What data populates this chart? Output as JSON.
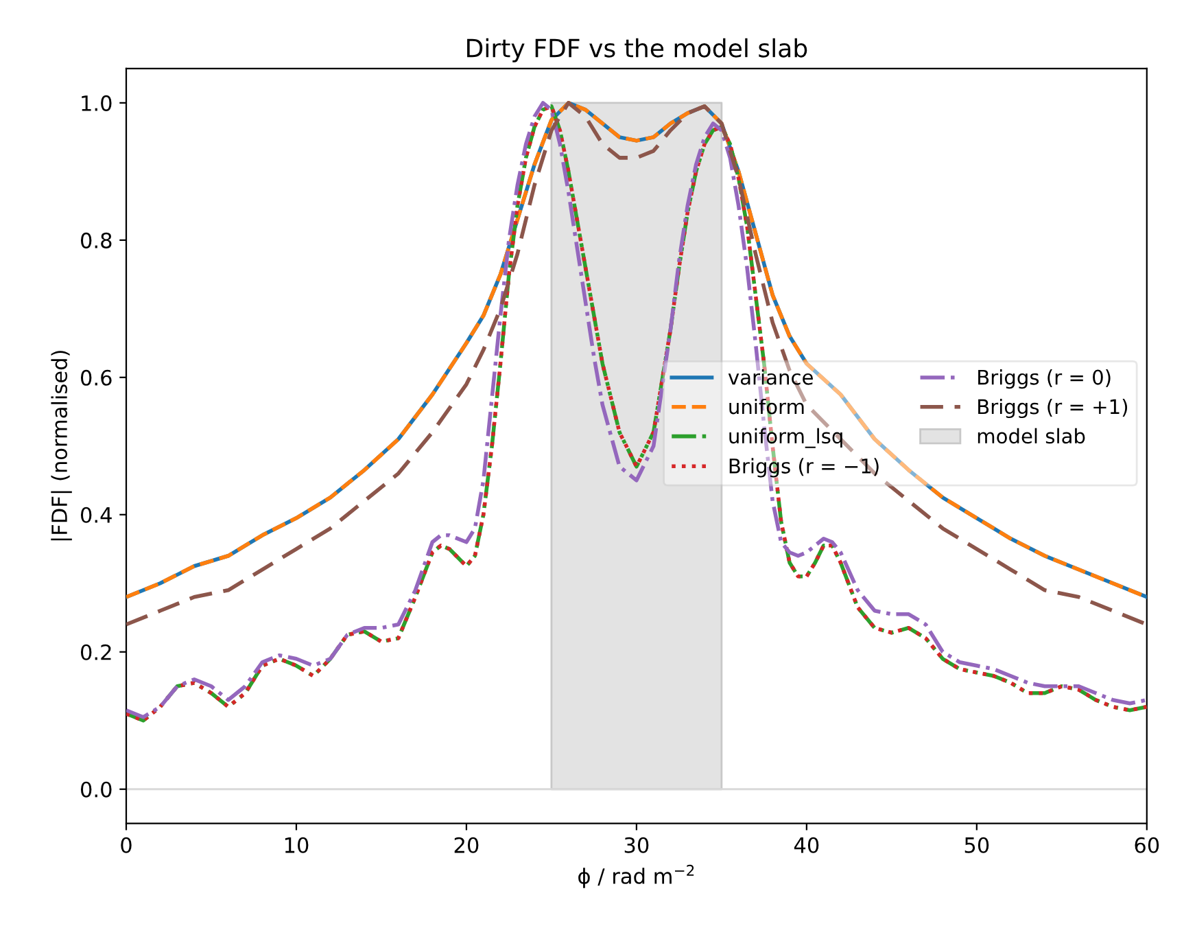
{
  "chart_data": {
    "type": "line",
    "title": "Dirty FDF vs the model slab",
    "xlabel": "ϕ / rad m$^{−2}$",
    "ylabel": "|FDF| (normalised)",
    "xlim": [
      0,
      60
    ],
    "xticks": [
      0,
      10,
      20,
      30,
      40,
      50,
      60
    ],
    "ylim": [
      -0.05,
      1.05
    ],
    "yticks": [
      {
        "value": 0,
        "label": "0.0"
      },
      {
        "value": 0.2,
        "label": "0.2"
      },
      {
        "value": 0.4,
        "label": "0.4"
      },
      {
        "value": 0.6,
        "label": "0.6"
      },
      {
        "value": 0.8,
        "label": "0.8"
      },
      {
        "value": 1.0,
        "label": "1.0"
      }
    ],
    "grid": false,
    "legend": "right",
    "ref_lines": [
      {
        "axis": "y",
        "value": 0,
        "label": null,
        "color": "#d9d9d9",
        "line_style": "solid"
      }
    ],
    "series": [
      {
        "name": "variance",
        "color": "#1f77b4",
        "line_style": "solid",
        "x": [
          0,
          2,
          4,
          6,
          8,
          10,
          12,
          14,
          16,
          18,
          20,
          21,
          22,
          23,
          24,
          25,
          26,
          27,
          28,
          29,
          30,
          31,
          32,
          33,
          34,
          35,
          36,
          37,
          38,
          39,
          40,
          42,
          44,
          46,
          48,
          50,
          52,
          54,
          56,
          58,
          60
        ],
        "values": [
          0.28,
          0.3,
          0.325,
          0.34,
          0.37,
          0.395,
          0.425,
          0.465,
          0.51,
          0.575,
          0.65,
          0.69,
          0.75,
          0.83,
          0.91,
          0.975,
          1.0,
          0.99,
          0.97,
          0.95,
          0.945,
          0.95,
          0.97,
          0.985,
          0.995,
          0.97,
          0.9,
          0.81,
          0.72,
          0.66,
          0.62,
          0.575,
          0.51,
          0.465,
          0.425,
          0.395,
          0.365,
          0.34,
          0.32,
          0.3,
          0.28
        ]
      },
      {
        "name": "uniform",
        "color": "#ff7f0e",
        "line_style": "dashed",
        "x": [
          0,
          2,
          4,
          6,
          8,
          10,
          12,
          14,
          16,
          18,
          20,
          21,
          22,
          23,
          24,
          25,
          26,
          27,
          28,
          29,
          30,
          31,
          32,
          33,
          34,
          35,
          36,
          37,
          38,
          39,
          40,
          42,
          44,
          46,
          48,
          50,
          52,
          54,
          56,
          58,
          60
        ],
        "values": [
          0.28,
          0.3,
          0.325,
          0.34,
          0.37,
          0.395,
          0.425,
          0.465,
          0.51,
          0.575,
          0.65,
          0.69,
          0.75,
          0.83,
          0.91,
          0.975,
          1.0,
          0.99,
          0.97,
          0.95,
          0.945,
          0.95,
          0.97,
          0.985,
          0.995,
          0.97,
          0.9,
          0.81,
          0.72,
          0.66,
          0.62,
          0.575,
          0.51,
          0.465,
          0.425,
          0.395,
          0.365,
          0.34,
          0.32,
          0.3,
          0.28
        ]
      },
      {
        "name": "uniform_lsq",
        "color": "#2ca02c",
        "line_style": "dashdotdot",
        "x": [
          0,
          1,
          2,
          3,
          4,
          5,
          6,
          7,
          8,
          9,
          10,
          11,
          12,
          13,
          14,
          15,
          16,
          17,
          18,
          18.5,
          19,
          20,
          20.5,
          21,
          21.5,
          22,
          22.5,
          23,
          23.5,
          24,
          24.5,
          25,
          25.5,
          26,
          26.5,
          27,
          27.5,
          28,
          29,
          30,
          31,
          32,
          32.5,
          33,
          33.5,
          34,
          34.5,
          35,
          35.5,
          36,
          36.5,
          37,
          37.5,
          38,
          38.5,
          39,
          39.5,
          40,
          40.5,
          41,
          41.5,
          42,
          43,
          44,
          45,
          46,
          47,
          48,
          49,
          50,
          51,
          52,
          53,
          54,
          55,
          56,
          57,
          58,
          59,
          60
        ],
        "values": [
          0.11,
          0.1,
          0.12,
          0.15,
          0.155,
          0.14,
          0.12,
          0.14,
          0.18,
          0.19,
          0.18,
          0.165,
          0.19,
          0.225,
          0.23,
          0.215,
          0.22,
          0.28,
          0.345,
          0.355,
          0.35,
          0.325,
          0.34,
          0.4,
          0.5,
          0.62,
          0.75,
          0.85,
          0.92,
          0.965,
          0.99,
          0.995,
          0.96,
          0.9,
          0.83,
          0.76,
          0.69,
          0.62,
          0.52,
          0.47,
          0.52,
          0.67,
          0.76,
          0.84,
          0.9,
          0.94,
          0.96,
          0.965,
          0.94,
          0.89,
          0.82,
          0.72,
          0.62,
          0.5,
          0.39,
          0.33,
          0.31,
          0.31,
          0.33,
          0.355,
          0.355,
          0.33,
          0.265,
          0.235,
          0.228,
          0.235,
          0.22,
          0.19,
          0.175,
          0.17,
          0.165,
          0.155,
          0.14,
          0.14,
          0.15,
          0.145,
          0.13,
          0.12,
          0.115,
          0.12
        ]
      },
      {
        "name": "Briggs (r = −1)",
        "color": "#d62728",
        "line_style": "dotted",
        "x": [
          0,
          1,
          2,
          3,
          4,
          5,
          6,
          7,
          8,
          9,
          10,
          11,
          12,
          13,
          14,
          15,
          16,
          17,
          18,
          18.5,
          19,
          20,
          20.5,
          21,
          21.5,
          22,
          22.5,
          23,
          23.5,
          24,
          24.5,
          25,
          25.5,
          26,
          26.5,
          27,
          27.5,
          28,
          29,
          30,
          31,
          32,
          32.5,
          33,
          33.5,
          34,
          34.5,
          35,
          35.5,
          36,
          36.5,
          37,
          37.5,
          38,
          38.5,
          39,
          39.5,
          40,
          40.5,
          41,
          41.5,
          42,
          43,
          44,
          45,
          46,
          47,
          48,
          49,
          50,
          51,
          52,
          53,
          54,
          55,
          56,
          57,
          58,
          59,
          60
        ],
        "values": [
          0.11,
          0.1,
          0.12,
          0.15,
          0.155,
          0.14,
          0.12,
          0.14,
          0.18,
          0.19,
          0.18,
          0.165,
          0.19,
          0.225,
          0.23,
          0.215,
          0.22,
          0.28,
          0.345,
          0.355,
          0.35,
          0.325,
          0.34,
          0.4,
          0.5,
          0.62,
          0.75,
          0.85,
          0.92,
          0.965,
          0.99,
          0.995,
          0.96,
          0.9,
          0.83,
          0.76,
          0.69,
          0.62,
          0.52,
          0.47,
          0.52,
          0.67,
          0.76,
          0.84,
          0.9,
          0.94,
          0.96,
          0.965,
          0.94,
          0.89,
          0.82,
          0.72,
          0.62,
          0.5,
          0.39,
          0.33,
          0.31,
          0.31,
          0.33,
          0.355,
          0.355,
          0.33,
          0.265,
          0.235,
          0.228,
          0.235,
          0.22,
          0.19,
          0.175,
          0.17,
          0.165,
          0.155,
          0.14,
          0.14,
          0.15,
          0.145,
          0.13,
          0.12,
          0.115,
          0.12
        ]
      },
      {
        "name": "Briggs (r = 0)",
        "color": "#9467bd",
        "line_style": "dashdot",
        "x": [
          0,
          1,
          2,
          3,
          4,
          5,
          6,
          7,
          8,
          9,
          10,
          11,
          12,
          13,
          14,
          15,
          16,
          17,
          18,
          18.5,
          19,
          20,
          20.5,
          21,
          21.5,
          22,
          22.5,
          23,
          23.5,
          24,
          24.5,
          25,
          25.5,
          26,
          26.5,
          27,
          27.5,
          28,
          29,
          30,
          31,
          32,
          32.5,
          33,
          33.5,
          34,
          34.5,
          35,
          35.5,
          36,
          36.5,
          37,
          37.5,
          38,
          38.5,
          39,
          39.5,
          40,
          40.5,
          41,
          41.5,
          42,
          43,
          44,
          45,
          46,
          47,
          48,
          49,
          50,
          51,
          52,
          53,
          54,
          55,
          56,
          57,
          58,
          59,
          60
        ],
        "values": [
          0.115,
          0.105,
          0.12,
          0.15,
          0.16,
          0.15,
          0.13,
          0.15,
          0.185,
          0.195,
          0.19,
          0.18,
          0.19,
          0.225,
          0.235,
          0.235,
          0.24,
          0.29,
          0.36,
          0.37,
          0.37,
          0.36,
          0.38,
          0.45,
          0.57,
          0.69,
          0.8,
          0.88,
          0.94,
          0.98,
          1.0,
          0.99,
          0.94,
          0.87,
          0.79,
          0.71,
          0.63,
          0.56,
          0.47,
          0.45,
          0.5,
          0.67,
          0.77,
          0.85,
          0.91,
          0.95,
          0.97,
          0.96,
          0.92,
          0.85,
          0.76,
          0.65,
          0.53,
          0.42,
          0.36,
          0.345,
          0.34,
          0.345,
          0.355,
          0.365,
          0.36,
          0.345,
          0.29,
          0.26,
          0.255,
          0.255,
          0.24,
          0.2,
          0.185,
          0.18,
          0.175,
          0.165,
          0.155,
          0.15,
          0.15,
          0.15,
          0.14,
          0.13,
          0.125,
          0.13
        ]
      },
      {
        "name": "Briggs (r = +1)",
        "color": "#8c564b",
        "line_style": "longdashed",
        "x": [
          0,
          2,
          4,
          6,
          8,
          10,
          12,
          14,
          16,
          18,
          20,
          21,
          22,
          23,
          24,
          25,
          26,
          27,
          28,
          29,
          30,
          31,
          32,
          33,
          34,
          35,
          36,
          37,
          38,
          39,
          40,
          42,
          44,
          46,
          48,
          50,
          52,
          54,
          56,
          58,
          60
        ],
        "values": [
          0.24,
          0.26,
          0.28,
          0.29,
          0.32,
          0.35,
          0.38,
          0.42,
          0.46,
          0.52,
          0.59,
          0.64,
          0.7,
          0.78,
          0.88,
          0.96,
          1.0,
          0.98,
          0.94,
          0.92,
          0.92,
          0.93,
          0.96,
          0.985,
          0.995,
          0.97,
          0.89,
          0.78,
          0.68,
          0.61,
          0.56,
          0.51,
          0.46,
          0.42,
          0.38,
          0.35,
          0.32,
          0.29,
          0.28,
          0.26,
          0.24
        ]
      },
      {
        "name": "model slab",
        "type": "area",
        "color": "#e3e3e3",
        "x": [
          25,
          35
        ],
        "values": [
          1.0,
          1.0
        ]
      }
    ]
  }
}
